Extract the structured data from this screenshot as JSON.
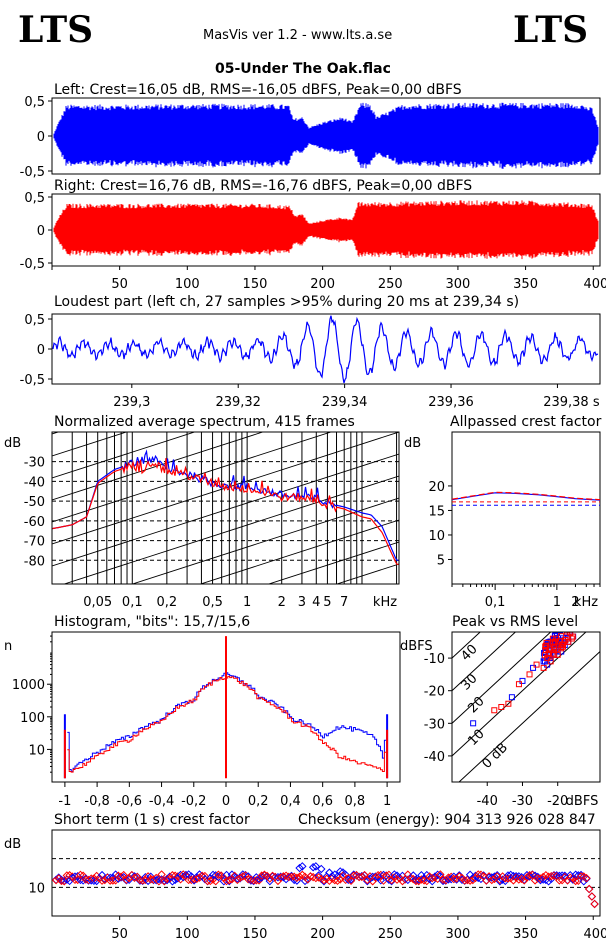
{
  "header": {
    "logo_left": "LTS",
    "logo_right": "LTS",
    "app_title": "MasVis ver 1.2 - www.lts.a.se",
    "file_name": "05-Under The Oak.flac"
  },
  "colors": {
    "left": "#0000ff",
    "right": "#ff0000",
    "grid": "#000000"
  },
  "panels": {
    "left_title": "Left: Crest=16,05 dB, RMS=-16,05 dBFS, Peak=0,00 dBFS",
    "right_title": "Right: Crest=16,76 dB, RMS=-16,76 dBFS, Peak=0,00 dBFS",
    "loudest_title": "Loudest part (left  ch, 27 samples >95% during 20 ms at 239,34 s)",
    "spectrum_title": "Normalized average spectrum, 415 frames",
    "crest_title": "Allpassed crest factor",
    "histogram_title": "Histogram, \"bits\": 15,7/15,6",
    "pvr_title": "Peak vs RMS level",
    "shortterm_title": "Short term (1 s) crest factor",
    "checksum": "Checksum (energy):   904 313 926 028 847"
  },
  "chart_data": [
    {
      "type": "area",
      "name": "waveform-left",
      "title": "Left: Crest=16,05 dB, RMS=-16,05 dBFS, Peak=0,00 dBFS",
      "y_ticks": [
        "0,5",
        "0",
        "-0,5"
      ],
      "ylim": [
        -1,
        1
      ],
      "xlim": [
        0,
        405
      ],
      "x": [
        0,
        3,
        10,
        50,
        100,
        150,
        175,
        178,
        185,
        190,
        200,
        215,
        222,
        228,
        235,
        240,
        260,
        300,
        350,
        390,
        400,
        405
      ],
      "amplitude": [
        0,
        0.3,
        0.9,
        0.9,
        0.92,
        0.92,
        0.9,
        0.5,
        0.55,
        0.25,
        0.4,
        0.55,
        0.4,
        0.95,
        0.95,
        0.55,
        0.92,
        0.95,
        0.95,
        0.95,
        0.8,
        0.2
      ]
    },
    {
      "type": "area",
      "name": "waveform-right",
      "title": "Right: Crest=16,76 dB, RMS=-16,76 dBFS, Peak=0,00 dBFS",
      "y_ticks": [
        "0,5",
        "0",
        "-0,5"
      ],
      "ylim": [
        -1,
        1
      ],
      "xlim": [
        0,
        405
      ],
      "x_ticks": [
        "50",
        "100",
        "150",
        "200",
        "250",
        "300",
        "350",
        "400s"
      ],
      "x_tick_values": [
        50,
        100,
        150,
        200,
        250,
        300,
        350,
        400
      ],
      "x": [
        0,
        3,
        10,
        50,
        100,
        150,
        175,
        180,
        185,
        190,
        200,
        215,
        222,
        226,
        240,
        300,
        350,
        400,
        405
      ],
      "amplitude": [
        0,
        0.3,
        0.8,
        0.8,
        0.8,
        0.8,
        0.75,
        0.45,
        0.5,
        0.2,
        0.3,
        0.4,
        0.3,
        0.85,
        0.85,
        0.9,
        0.9,
        0.8,
        0.2
      ]
    },
    {
      "type": "line",
      "name": "loudest-part",
      "title": "Loudest part (left  ch, 27 samples >95% during 20 ms at 239,34 s)",
      "y_ticks": [
        "0,5",
        "0",
        "-0,5"
      ],
      "ylim": [
        -1,
        1
      ],
      "xlim": [
        239.285,
        239.388
      ],
      "x_ticks": [
        "239,3",
        "239,32",
        "239,34",
        "239,36",
        "239,38 s"
      ],
      "x_tick_values": [
        239.3,
        239.32,
        239.34,
        239.36,
        239.38
      ]
    },
    {
      "type": "line",
      "name": "spectrum",
      "title": "Normalized average spectrum, 415 frames",
      "ylabel": "dB",
      "xlabel": "kHz",
      "ylim": [
        -92,
        -15
      ],
      "y_ticks": [
        "-30",
        "-40",
        "-50",
        "-60",
        "-70",
        "-80"
      ],
      "y_tick_values": [
        -30,
        -40,
        -50,
        -60,
        -70,
        -80
      ],
      "x_ticks": [
        "0,05",
        "0,1",
        "0,2",
        "0,5",
        "1",
        "2",
        "3",
        "4",
        "5",
        "7",
        "kHz"
      ],
      "x_tick_values": [
        0.05,
        0.1,
        0.2,
        0.5,
        1,
        2,
        3,
        4,
        5,
        7
      ],
      "xlim": [
        0.02,
        21
      ],
      "log_x": true,
      "series": [
        {
          "freq": [
            0.02,
            0.03,
            0.04,
            0.05,
            0.07,
            0.1,
            0.12,
            0.15,
            0.2,
            0.3,
            0.5,
            0.7,
            1,
            1.5,
            2,
            3,
            4,
            5,
            7,
            10,
            12,
            15,
            20
          ],
          "db": [
            -64,
            -62,
            -58,
            -40,
            -34,
            -31,
            -32,
            -28,
            -34,
            -36,
            -41,
            -42,
            -43,
            -45,
            -47,
            -48,
            -49,
            -51,
            -53,
            -56,
            -57,
            -63,
            -80
          ]
        },
        {
          "freq": [
            0.02,
            0.03,
            0.04,
            0.05,
            0.07,
            0.1,
            0.12,
            0.15,
            0.2,
            0.3,
            0.5,
            0.7,
            1,
            1.5,
            2,
            3,
            4,
            5,
            7,
            10,
            12,
            15,
            20
          ],
          "db": [
            -64,
            -62,
            -58,
            -41,
            -35,
            -32,
            -34,
            -30,
            -35,
            -37,
            -41,
            -43,
            -44,
            -46,
            -48,
            -48,
            -50,
            -52,
            -54,
            -58,
            -59,
            -66,
            -82
          ]
        }
      ]
    },
    {
      "type": "line",
      "name": "allpassed-crest",
      "title": "Allpassed crest factor",
      "ylabel": "dB",
      "xlabel": "kHz",
      "y_ticks": [
        "20",
        "15",
        "10",
        "5"
      ],
      "y_tick_values": [
        20,
        15,
        10,
        5
      ],
      "ylim": [
        0,
        31
      ],
      "x_ticks": [
        "0,1",
        "1",
        "2",
        "kHz"
      ],
      "x_tick_values": [
        0.1,
        1,
        2
      ],
      "xlim": [
        0.02,
        5
      ],
      "log_x": true,
      "series": [
        {
          "freq": [
            0.02,
            0.05,
            0.1,
            0.2,
            0.5,
            1,
            2,
            5
          ],
          "db": [
            17.2,
            18,
            18.6,
            18.5,
            18.2,
            17.8,
            17.4,
            17.1
          ]
        },
        {
          "freq": [
            0.02,
            0.05,
            0.1,
            0.2,
            0.5,
            1,
            2,
            5
          ],
          "db": [
            17.3,
            18.1,
            18.7,
            18.6,
            18.3,
            17.9,
            17.5,
            17.2
          ]
        }
      ],
      "reference_lines": [
        16.05,
        16.76
      ]
    },
    {
      "type": "line",
      "name": "histogram",
      "title": "Histogram, \"bits\": 15,7/15,6",
      "ylabel": "n",
      "log_y": true,
      "y_ticks": [
        "1000",
        "100",
        "10"
      ],
      "y_tick_values": [
        1000,
        100,
        10
      ],
      "ylim": [
        1,
        40000
      ],
      "x_ticks": [
        "-1",
        "-0,8",
        "-0,6",
        "-0,4",
        "-0,2",
        "0",
        "0,2",
        "0,4",
        "0,6",
        "0,8",
        "1"
      ],
      "x_tick_values": [
        -1,
        -0.8,
        -0.6,
        -0.4,
        -0.2,
        0,
        0.2,
        0.4,
        0.6,
        0.8,
        1
      ],
      "xlim": [
        -1.08,
        1.08
      ],
      "series": [
        {
          "x": [
            -1,
            -0.98,
            -0.9,
            -0.8,
            -0.6,
            -0.4,
            -0.2,
            0,
            0.2,
            0.4,
            0.6,
            0.7,
            0.8,
            0.9,
            0.98,
            1
          ],
          "count": [
            120,
            2,
            4,
            8,
            25,
            80,
            350,
            2000,
            400,
            90,
            25,
            50,
            40,
            25,
            3,
            120
          ]
        },
        {
          "x": [
            -1,
            -0.98,
            -0.9,
            -0.8,
            -0.6,
            -0.4,
            -0.2,
            0,
            0.2,
            0.4,
            0.6,
            0.7,
            0.8,
            0.9,
            0.98,
            1
          ],
          "count": [
            40,
            2,
            3,
            6,
            20,
            70,
            320,
            1800,
            350,
            80,
            15,
            6,
            4,
            3,
            2,
            40
          ]
        }
      ],
      "spike_at_zero": 30000
    },
    {
      "type": "scatter",
      "name": "peak-vs-rms",
      "title": "Peak vs RMS level",
      "ylabel": "dBFS",
      "xlabel": "dBFS",
      "y_ticks": [
        "-10",
        "-20",
        "-30",
        "-40"
      ],
      "y_tick_values": [
        -10,
        -20,
        -30,
        -40
      ],
      "ylim": [
        -48,
        -2
      ],
      "x_ticks": [
        "-40",
        "-30",
        "-20",
        "dBFS"
      ],
      "x_tick_values": [
        -40,
        -30,
        -20
      ],
      "xlim": [
        -50,
        -8
      ],
      "crest_labels": [
        "40",
        "30",
        "20",
        "10",
        "0 dB"
      ],
      "crest_values": [
        40,
        30,
        20,
        10,
        0
      ],
      "series": [
        {
          "points": [
            [
              -27,
              -13
            ],
            [
              -24,
              -11
            ],
            [
              -22,
              -10
            ],
            [
              -20,
              -8
            ],
            [
              -18,
              -6
            ],
            [
              -19,
              -8
            ],
            [
              -21,
              -9
            ],
            [
              -17,
              -5
            ],
            [
              -23,
              -12
            ],
            [
              -30,
              -17
            ],
            [
              -33,
              -22
            ],
            [
              -44,
              -30
            ]
          ]
        },
        {
          "points": [
            [
              -26,
              -12
            ],
            [
              -23,
              -10
            ],
            [
              -21,
              -9
            ],
            [
              -19,
              -7
            ],
            [
              -17,
              -5
            ],
            [
              -20,
              -9
            ],
            [
              -22,
              -11
            ],
            [
              -16,
              -4
            ],
            [
              -24,
              -13
            ],
            [
              -31,
              -18
            ],
            [
              -34,
              -24
            ],
            [
              -36,
              -25
            ],
            [
              -38,
              -26
            ],
            [
              -28,
              -15
            ]
          ]
        }
      ]
    },
    {
      "type": "scatter",
      "name": "short-term-crest",
      "title": "Short term (1 s) crest factor",
      "ylabel": "dB",
      "y_ticks": [
        "10"
      ],
      "y_tick_values": [
        10
      ],
      "ylim": [
        0,
        30
      ],
      "xlim": [
        0,
        405
      ],
      "x_ticks": [
        "50",
        "100",
        "150",
        "200",
        "250",
        "300",
        "350",
        "400s"
      ],
      "x_tick_values": [
        50,
        100,
        150,
        200,
        250,
        300,
        350,
        400
      ],
      "dashed_levels": [
        10,
        20
      ],
      "typical_range": [
        10,
        16
      ]
    }
  ]
}
